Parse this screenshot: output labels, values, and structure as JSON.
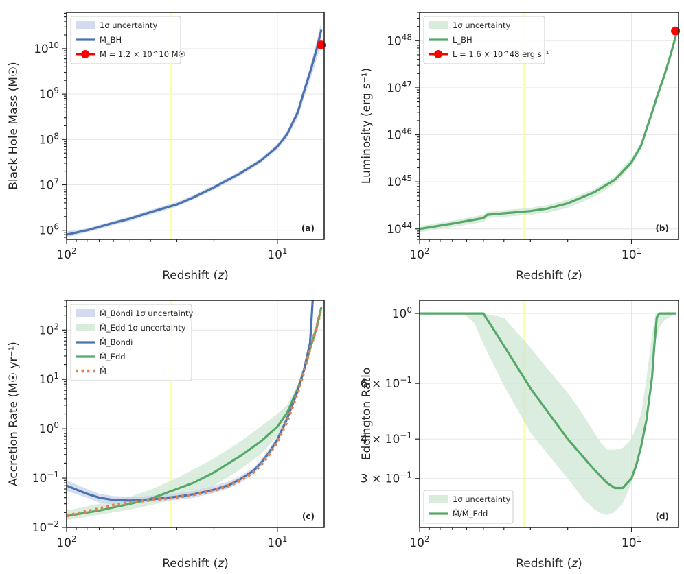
{
  "colors": {
    "blue": "#4c72b0",
    "green": "#55a868",
    "orange": "#dd8452",
    "red": "#ff0000",
    "yellow": "#ffff99",
    "band_blue": "#c7d3ea",
    "band_green": "#cfe7d3"
  },
  "chart_data": [
    {
      "type": "line",
      "id": "a",
      "panel_label": "(a)",
      "xlabel_parts": [
        "Redshift (",
        "z",
        ")"
      ],
      "ylabel": "Black Hole Mass (M☉)",
      "xscale": "log-reversed",
      "yscale": "log",
      "xlim": [
        100,
        6
      ],
      "ylim": [
        630000,
        63000000000
      ],
      "xtick_labels": [
        {
          "value": 100,
          "base": "10",
          "exp": "2"
        },
        {
          "value": 10,
          "base": "10",
          "exp": "1"
        }
      ],
      "ytick_labels": [
        {
          "value": 1000000.0,
          "base": "10",
          "exp": "6"
        },
        {
          "value": 10000000.0,
          "base": "10",
          "exp": "7"
        },
        {
          "value": 100000000.0,
          "base": "10",
          "exp": "8"
        },
        {
          "value": 1000000000.0,
          "base": "10",
          "exp": "9"
        },
        {
          "value": 10000000000.0,
          "base": "10",
          "exp": "10"
        }
      ],
      "highlight_z": 32,
      "legend": [
        {
          "kind": "band",
          "label": "1σ uncertainty"
        },
        {
          "kind": "line",
          "label": "M_BH"
        },
        {
          "kind": "marker",
          "label": "M = 1.2 × 10^10 M☉"
        }
      ],
      "band": {
        "color": "blue",
        "x": [
          100,
          80,
          60,
          50,
          40,
          30,
          25,
          20,
          15,
          12,
          10,
          9,
          8,
          7.5,
          7,
          6.5,
          6.2
        ],
        "lower": [
          700000,
          900000,
          1300000,
          1600000,
          2200000,
          3300000,
          4800000,
          7800000,
          16000000,
          30000000,
          60000000,
          110000000,
          300000000,
          800000000,
          2000000000,
          6000000000,
          13000000000
        ],
        "upper": [
          950000,
          1100000,
          1600000,
          2000000,
          2800000,
          4200000,
          6000000,
          9800000,
          20000000,
          38000000,
          80000000,
          150000000,
          500000000,
          1400000000,
          4000000000,
          15000000000,
          38000000000
        ]
      },
      "series": [
        {
          "name": "M_BH",
          "color": "blue",
          "dotted": false,
          "x": [
            100,
            80,
            60,
            50,
            40,
            30,
            25,
            20,
            15,
            12,
            10,
            9,
            8,
            7.5,
            7,
            6.5,
            6.2
          ],
          "y": [
            800000,
            1000000,
            1450000,
            1800000,
            2500000,
            3700000,
            5300000,
            8800000,
            18000000,
            34000000,
            70000000,
            130000000,
            400000000,
            1100000000,
            3000000000,
            10000000000,
            25000000000
          ]
        }
      ],
      "marker": {
        "x": 6.2,
        "y": 12000000000,
        "color": "red"
      }
    },
    {
      "type": "line",
      "id": "b",
      "panel_label": "(b)",
      "xlabel_parts": [
        "Redshift (",
        "z",
        ")"
      ],
      "ylabel": "Luminosity (erg s⁻¹)",
      "xscale": "log-reversed",
      "yscale": "log",
      "xlim": [
        100,
        6
      ],
      "ylim": [
        6e+43,
        4e+48
      ],
      "xtick_labels": [
        {
          "value": 100,
          "base": "10",
          "exp": "2"
        },
        {
          "value": 10,
          "base": "10",
          "exp": "1"
        }
      ],
      "ytick_labels": [
        {
          "value": 1e+44,
          "base": "10",
          "exp": "44"
        },
        {
          "value": 1e+45,
          "base": "10",
          "exp": "45"
        },
        {
          "value": 1e+46,
          "base": "10",
          "exp": "46"
        },
        {
          "value": 1e+47,
          "base": "10",
          "exp": "47"
        },
        {
          "value": 1e+48,
          "base": "10",
          "exp": "48"
        }
      ],
      "highlight_z": 32,
      "legend": [
        {
          "kind": "band",
          "label": "1σ uncertainty"
        },
        {
          "kind": "line",
          "label": "L_BH"
        },
        {
          "kind": "marker",
          "label": "L = 1.6 × 10^48 erg s⁻¹"
        }
      ],
      "band": {
        "color": "green",
        "x": [
          100,
          70,
          50,
          48,
          40,
          30,
          25,
          20,
          15,
          12,
          10,
          9,
          8,
          7.5,
          7,
          6.5,
          6.2
        ],
        "lower": [
          8.5e+43,
          1.1e+44,
          1.4e+44,
          1.7e+44,
          1.8e+44,
          2e+44,
          2.2e+44,
          2.8e+44,
          4.8e+44,
          9e+44,
          2.2e+45,
          5e+45,
          2.5e+46,
          6e+46,
          1.5e+47,
          4.5e+47,
          1e+48
        ],
        "upper": [
          1.15e+44,
          1.5e+44,
          2e+44,
          2.3e+44,
          2.5e+44,
          2.8e+44,
          3.2e+44,
          4.2e+44,
          7e+44,
          1.3e+45,
          3.2e+45,
          7e+45,
          3.5e+46,
          9e+46,
          2.2e+47,
          6.5e+47,
          1.5e+48
        ]
      },
      "series": [
        {
          "name": "L_BH",
          "color": "green",
          "dotted": false,
          "x": [
            100,
            70,
            50,
            48,
            40,
            30,
            25,
            20,
            15,
            12,
            10,
            9,
            8,
            7.5,
            7,
            6.5,
            6.2
          ],
          "y": [
            1e+44,
            1.3e+44,
            1.7e+44,
            2e+44,
            2.15e+44,
            2.4e+44,
            2.7e+44,
            3.5e+44,
            6e+44,
            1.1e+45,
            2.6e+45,
            6e+45,
            3e+46,
            7.5e+46,
            1.8e+47,
            5.5e+47,
            1.2e+48
          ]
        }
      ],
      "marker": {
        "x": 6.2,
        "y": 1.6e+48,
        "color": "red"
      }
    },
    {
      "type": "line",
      "id": "c",
      "panel_label": "(c)",
      "xlabel_parts": [
        "Redshift (",
        "z",
        ")"
      ],
      "ylabel": "Accretion Rate (M☉ yr⁻¹)",
      "xscale": "log-reversed",
      "yscale": "log",
      "xlim": [
        100,
        6
      ],
      "ylim": [
        0.01,
        400
      ],
      "xtick_labels": [
        {
          "value": 100,
          "base": "10",
          "exp": "2"
        },
        {
          "value": 10,
          "base": "10",
          "exp": "1"
        }
      ],
      "ytick_labels": [
        {
          "value": 0.01,
          "base": "10",
          "exp": "−2"
        },
        {
          "value": 0.1,
          "base": "10",
          "exp": "−1"
        },
        {
          "value": 1,
          "base": "10",
          "exp": "0"
        },
        {
          "value": 10,
          "base": "10",
          "exp": "1"
        },
        {
          "value": 100,
          "base": "10",
          "exp": "2"
        }
      ],
      "highlight_z": 32,
      "legend": [
        {
          "kind": "band",
          "color": "blue",
          "label": "Ṁ_Bondi 1σ uncertainty"
        },
        {
          "kind": "band",
          "color": "green",
          "label": "Ṁ_Edd 1σ uncertainty"
        },
        {
          "kind": "line",
          "color": "blue",
          "label": "Ṁ_Bondi"
        },
        {
          "kind": "line",
          "color": "green",
          "label": "Ṁ_Edd"
        },
        {
          "kind": "dotted",
          "color": "orange",
          "label": "Ṁ"
        }
      ],
      "bands": [
        {
          "color": "green",
          "x": [
            100,
            70,
            50,
            40,
            30,
            25,
            20,
            15,
            12,
            10,
            9,
            8,
            7.5,
            7,
            6.5,
            6.2
          ],
          "lower": [
            0.014,
            0.018,
            0.023,
            0.028,
            0.038,
            0.048,
            0.07,
            0.15,
            0.3,
            0.7,
            1.5,
            5,
            12,
            35,
            100,
            240
          ],
          "upper": [
            0.022,
            0.03,
            0.042,
            0.058,
            0.1,
            0.15,
            0.25,
            0.55,
            1.1,
            2,
            3,
            8,
            18,
            50,
            140,
            330
          ]
        },
        {
          "color": "blue",
          "x": [
            100,
            80,
            70,
            60,
            50,
            45,
            40,
            35,
            30,
            25,
            20,
            17,
            15,
            13,
            12,
            11,
            10,
            9,
            8,
            7.5,
            7,
            6.8
          ],
          "lower": [
            0.055,
            0.04,
            0.032,
            0.029,
            0.03,
            0.032,
            0.033,
            0.034,
            0.036,
            0.04,
            0.05,
            0.062,
            0.08,
            0.12,
            0.17,
            0.27,
            0.5,
            1.3,
            5,
            13,
            45,
            110
          ],
          "upper": [
            0.09,
            0.06,
            0.048,
            0.043,
            0.042,
            0.042,
            0.044,
            0.046,
            0.049,
            0.055,
            0.07,
            0.085,
            0.11,
            0.16,
            0.23,
            0.38,
            0.7,
            1.9,
            7.5,
            18,
            70,
            200
          ]
        }
      ],
      "series": [
        {
          "name": "Ṁ_Edd",
          "color": "green",
          "dotted": false,
          "x": [
            100,
            70,
            50,
            40,
            30,
            25,
            20,
            15,
            12,
            10,
            9,
            8,
            7.5,
            7,
            6.5,
            6.2
          ],
          "y": [
            0.017,
            0.022,
            0.03,
            0.038,
            0.06,
            0.08,
            0.13,
            0.28,
            0.55,
            1.1,
            2.1,
            6.5,
            15,
            42,
            115,
            280
          ]
        },
        {
          "name": "Ṁ_Bondi",
          "color": "blue",
          "dotted": false,
          "x": [
            100,
            80,
            70,
            60,
            50,
            45,
            40,
            35,
            30,
            25,
            20,
            17,
            15,
            13,
            12,
            11,
            10,
            9,
            8,
            7.5,
            7,
            6.8
          ],
          "y": [
            0.07,
            0.048,
            0.04,
            0.036,
            0.035,
            0.036,
            0.037,
            0.039,
            0.042,
            0.047,
            0.058,
            0.072,
            0.095,
            0.14,
            0.2,
            0.32,
            0.6,
            1.6,
            6,
            15,
            55,
            400
          ]
        },
        {
          "name": "Ṁ",
          "color": "orange",
          "dotted": true,
          "x": [
            100,
            90,
            80,
            70,
            60,
            50,
            45,
            40,
            35,
            30,
            25,
            20,
            17,
            15,
            13,
            12,
            11,
            10,
            9,
            8,
            7.5,
            7,
            6.5,
            6.2
          ],
          "y": [
            0.017,
            0.019,
            0.021,
            0.024,
            0.028,
            0.032,
            0.034,
            0.036,
            0.038,
            0.041,
            0.046,
            0.056,
            0.07,
            0.09,
            0.13,
            0.18,
            0.29,
            0.55,
            1.4,
            5.5,
            14,
            42,
            115,
            280
          ]
        }
      ]
    },
    {
      "type": "line",
      "id": "d",
      "panel_label": "(d)",
      "xlabel_parts": [
        "Redshift (",
        "z",
        ")"
      ],
      "ylabel": "Eddington Ratio",
      "xscale": "log-reversed",
      "yscale": "log",
      "xlim": [
        100,
        6
      ],
      "ylim": [
        0.21,
        1.1
      ],
      "xtick_labels": [
        {
          "value": 100,
          "base": "10",
          "exp": "2"
        },
        {
          "value": 10,
          "base": "10",
          "exp": "1"
        }
      ],
      "ytick_labels": [
        {
          "value": 0.3,
          "base": "3 × 10",
          "exp": "−1"
        },
        {
          "value": 0.4,
          "base": "4 × 10",
          "exp": "−1"
        },
        {
          "value": 0.6,
          "base": "6 × 10",
          "exp": "−1"
        },
        {
          "value": 1,
          "base": "10",
          "exp": "0"
        }
      ],
      "highlight_z": 32,
      "legend": [
        {
          "kind": "band",
          "color": "green",
          "label": "1σ uncertainty"
        },
        {
          "kind": "line",
          "color": "green",
          "label": "Ṁ/Ṁ_Edd"
        }
      ],
      "band": {
        "color": "green",
        "x": [
          100,
          70,
          62,
          55,
          50,
          40,
          30,
          25,
          20,
          17,
          15,
          14,
          13,
          12,
          11,
          10,
          9,
          8.5,
          8,
          7.7,
          7.4,
          7,
          6.5,
          6.2
        ],
        "lower": [
          1,
          1,
          1,
          0.93,
          0.8,
          0.59,
          0.42,
          0.36,
          0.3,
          0.26,
          0.24,
          0.233,
          0.23,
          0.235,
          0.25,
          0.29,
          0.38,
          0.5,
          0.7,
          0.82,
          0.9,
          0.95,
          0.98,
          1
        ],
        "upper": [
          1,
          1,
          1,
          1,
          1,
          0.97,
          0.78,
          0.67,
          0.56,
          0.48,
          0.42,
          0.39,
          0.37,
          0.37,
          0.375,
          0.4,
          0.48,
          0.62,
          0.86,
          1,
          1,
          1,
          1,
          1
        ]
      },
      "series": [
        {
          "name": "Ṁ/Ṁ_Edd",
          "color": "green",
          "dotted": false,
          "x": [
            100,
            70,
            50,
            40,
            30,
            25,
            20,
            15,
            13,
            12,
            11,
            10,
            9.5,
            9,
            8.5,
            8,
            7.8,
            7.6,
            7.4,
            7,
            6.5,
            6.2
          ],
          "y": [
            1,
            1,
            1,
            0.79,
            0.58,
            0.49,
            0.4,
            0.32,
            0.29,
            0.28,
            0.28,
            0.3,
            0.33,
            0.38,
            0.46,
            0.63,
            0.79,
            0.97,
            1,
            1,
            1,
            1
          ]
        }
      ]
    }
  ]
}
